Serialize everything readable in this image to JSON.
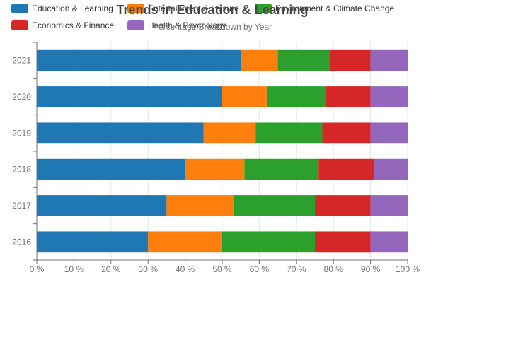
{
  "chart_data": {
    "type": "bar",
    "orientation": "horizontal",
    "stacked": true,
    "normalized_percent": true,
    "title": "Trends in Education & Learning",
    "subtitle": "Percentage Breakdown by Year",
    "categories": [
      "2016",
      "2017",
      "2018",
      "2019",
      "2020",
      "2021"
    ],
    "series": [
      {
        "name": "Education & Learning",
        "color": "#1f77b4",
        "values": [
          30,
          35,
          40,
          45,
          50,
          55
        ]
      },
      {
        "name": "Entertainment & Leisure",
        "color": "#ff7f0e",
        "values": [
          20,
          18,
          16,
          14,
          12,
          10
        ]
      },
      {
        "name": "Environment & Climate Change",
        "color": "#2ca02c",
        "values": [
          25,
          22,
          20,
          18,
          16,
          14
        ]
      },
      {
        "name": "Economics & Finance",
        "color": "#d62728",
        "values": [
          15,
          15,
          15,
          13,
          12,
          11
        ]
      },
      {
        "name": "Health & Psychology",
        "color": "#9467bd",
        "values": [
          10,
          10,
          9,
          10,
          10,
          10
        ]
      }
    ],
    "xlim": [
      0,
      100
    ],
    "x_ticks": [
      "0 %",
      "10 %",
      "20 %",
      "30 %",
      "40 %",
      "50 %",
      "60 %",
      "70 %",
      "80 %",
      "90 %",
      "100 %"
    ],
    "grid": true,
    "legend_position": "top-left"
  }
}
